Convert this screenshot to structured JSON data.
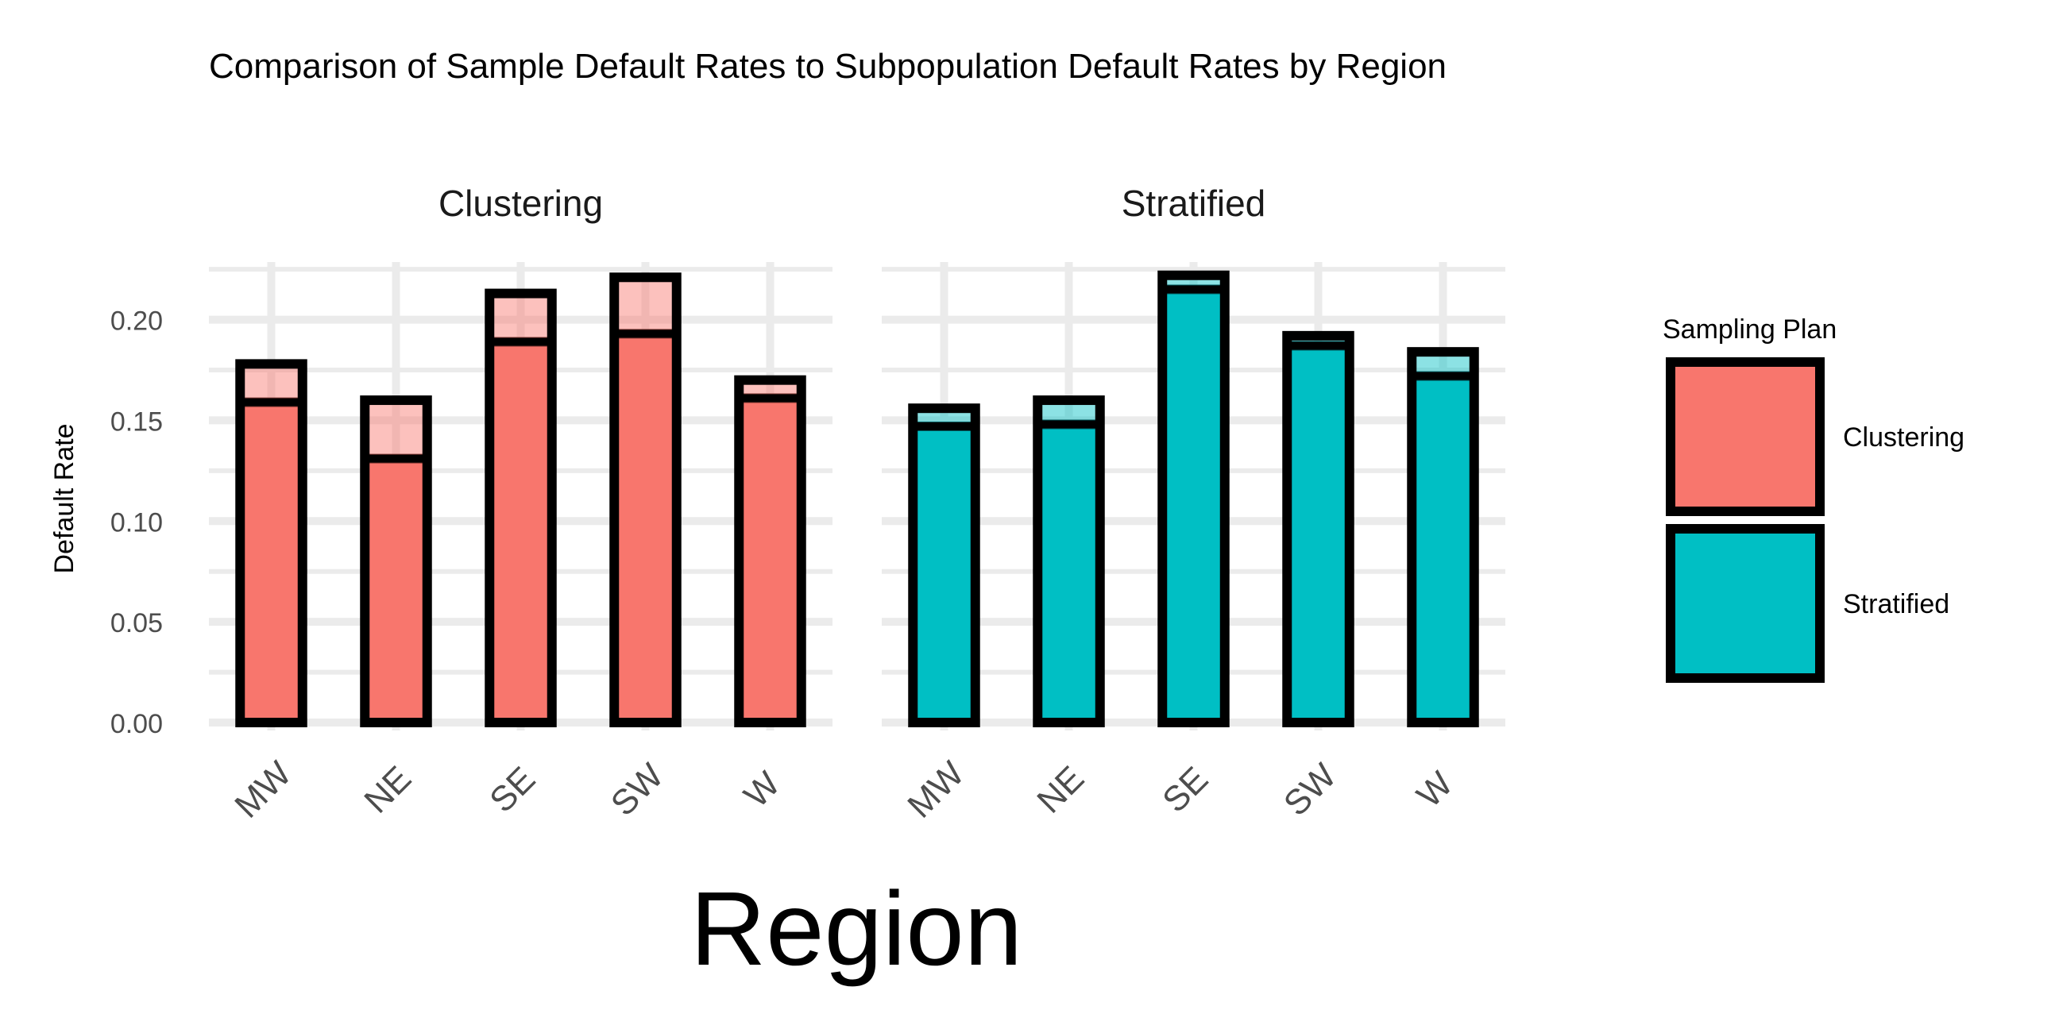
{
  "chart_data": {
    "type": "bar",
    "title": "Comparison of Sample Default Rates to Subpopulation Default Rates by Region",
    "xlabel": "Region",
    "ylabel": "Default Rate",
    "ylim": [
      0,
      0.2286
    ],
    "y_ticks": [
      0.0,
      0.05,
      0.1,
      0.15,
      0.2
    ],
    "y_tick_labels": [
      "0.00",
      "0.05",
      "0.10",
      "0.15",
      "0.20"
    ],
    "grid": true,
    "categories": [
      "MW",
      "NE",
      "SE",
      "SW",
      "W"
    ],
    "panels": [
      {
        "name": "Clustering",
        "color": "#F8766D",
        "dark_color": "#7a3430",
        "sample_rate": [
          0.178,
          0.16,
          0.213,
          0.221,
          0.17
        ],
        "subpopulation_rate": [
          0.159,
          0.131,
          0.189,
          0.193,
          0.161
        ]
      },
      {
        "name": "Stratified",
        "color": "#00BFC4",
        "dark_color": "#00585c",
        "sample_rate": [
          0.156,
          0.16,
          0.222,
          0.192,
          0.184
        ],
        "subpopulation_rate": [
          0.147,
          0.148,
          0.215,
          0.187,
          0.172
        ]
      }
    ],
    "legend": {
      "title": "Sampling Plan",
      "position": "right",
      "items": [
        {
          "label": "Clustering",
          "color": "#F8766D"
        },
        {
          "label": "Stratified",
          "color": "#00BFC4"
        }
      ]
    }
  }
}
